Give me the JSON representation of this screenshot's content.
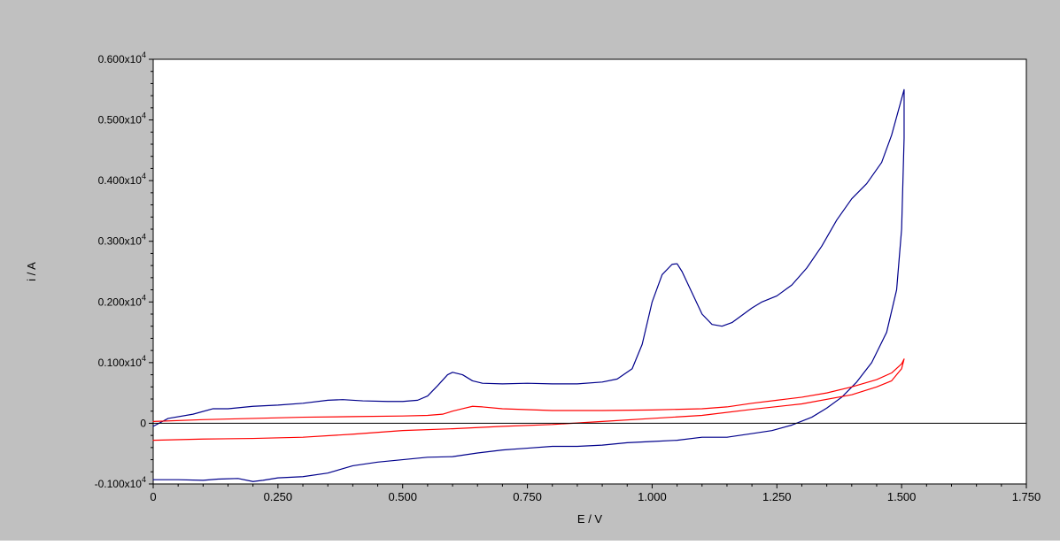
{
  "chart_data": {
    "type": "line",
    "title": "",
    "xlabel": "E / V",
    "ylabel": "i / A",
    "xlim": [
      0,
      1.75
    ],
    "ylim": [
      -1000,
      6000
    ],
    "xticks": [
      0,
      0.25,
      0.5,
      0.75,
      1.0,
      1.25,
      1.5,
      1.75
    ],
    "xtick_labels": [
      "0",
      "0.250",
      "0.500",
      "0.750",
      "1.000",
      "1.250",
      "1.500",
      "1.750"
    ],
    "yticks": [
      -1000,
      0,
      1000,
      2000,
      3000,
      4000,
      5000,
      6000
    ],
    "ytick_labels": [
      {
        "mantissa": "-0.100x10",
        "exp": "4"
      },
      {
        "mantissa": "0",
        "exp": ""
      },
      {
        "mantissa": "0.100x10",
        "exp": "4"
      },
      {
        "mantissa": "0.200x10",
        "exp": "4"
      },
      {
        "mantissa": "0.300x10",
        "exp": "4"
      },
      {
        "mantissa": "0.400x10",
        "exp": "4"
      },
      {
        "mantissa": "0.500x10",
        "exp": "4"
      },
      {
        "mantissa": "0.600x10",
        "exp": "4"
      }
    ],
    "grid": false,
    "legend": "none",
    "colors": {
      "background": "#c0c0c0",
      "plot_area": "#ffffff"
    },
    "series": [
      {
        "color": "#00008b",
        "x": [
          0.0,
          0.03,
          0.08,
          0.12,
          0.15,
          0.2,
          0.25,
          0.3,
          0.35,
          0.38,
          0.42,
          0.47,
          0.5,
          0.53,
          0.55,
          0.57,
          0.59,
          0.6,
          0.62,
          0.64,
          0.66,
          0.7,
          0.75,
          0.8,
          0.85,
          0.9,
          0.93,
          0.96,
          0.98,
          1.0,
          1.02,
          1.04,
          1.05,
          1.06,
          1.08,
          1.1,
          1.12,
          1.14,
          1.16,
          1.18,
          1.2,
          1.22,
          1.25,
          1.28,
          1.31,
          1.34,
          1.37,
          1.4,
          1.43,
          1.46,
          1.48,
          1.5,
          1.505,
          1.505,
          1.5,
          1.49,
          1.47,
          1.44,
          1.41,
          1.38,
          1.35,
          1.32,
          1.28,
          1.24,
          1.2,
          1.15,
          1.1,
          1.05,
          1.0,
          0.95,
          0.9,
          0.85,
          0.8,
          0.75,
          0.7,
          0.65,
          0.6,
          0.55,
          0.5,
          0.45,
          0.4,
          0.35,
          0.3,
          0.25,
          0.22,
          0.2,
          0.17,
          0.13,
          0.1,
          0.05,
          0.0
        ],
        "values": [
          -50,
          80,
          150,
          240,
          240,
          280,
          300,
          330,
          380,
          390,
          370,
          360,
          360,
          380,
          450,
          620,
          800,
          840,
          800,
          700,
          660,
          650,
          660,
          650,
          650,
          680,
          730,
          900,
          1300,
          2000,
          2450,
          2620,
          2630,
          2500,
          2150,
          1800,
          1630,
          1600,
          1660,
          1780,
          1900,
          2000,
          2100,
          2280,
          2560,
          2920,
          3350,
          3700,
          3950,
          4300,
          4750,
          5350,
          5500,
          4700,
          3200,
          2200,
          1500,
          1000,
          680,
          430,
          250,
          100,
          -30,
          -120,
          -170,
          -230,
          -230,
          -280,
          -300,
          -320,
          -360,
          -380,
          -380,
          -410,
          -440,
          -490,
          -550,
          -560,
          -600,
          -640,
          -700,
          -820,
          -880,
          -900,
          -940,
          -960,
          -910,
          -920,
          -940,
          -930,
          -930
        ]
      },
      {
        "color": "#ff0000",
        "x": [
          0.0,
          0.1,
          0.2,
          0.3,
          0.4,
          0.5,
          0.55,
          0.58,
          0.6,
          0.62,
          0.64,
          0.66,
          0.7,
          0.8,
          0.9,
          1.0,
          1.1,
          1.15,
          1.2,
          1.25,
          1.3,
          1.35,
          1.4,
          1.45,
          1.48,
          1.5,
          1.505,
          1.5,
          1.48,
          1.45,
          1.4,
          1.3,
          1.2,
          1.1,
          1.0,
          0.9,
          0.8,
          0.7,
          0.6,
          0.5,
          0.4,
          0.3,
          0.2,
          0.1,
          0.0
        ],
        "values": [
          30,
          60,
          80,
          100,
          110,
          120,
          130,
          150,
          200,
          240,
          280,
          270,
          240,
          210,
          210,
          220,
          240,
          270,
          330,
          380,
          430,
          500,
          600,
          720,
          830,
          980,
          1060,
          900,
          700,
          600,
          470,
          320,
          230,
          130,
          80,
          30,
          -20,
          -50,
          -90,
          -120,
          -180,
          -230,
          -250,
          -260,
          -280
        ]
      }
    ]
  }
}
